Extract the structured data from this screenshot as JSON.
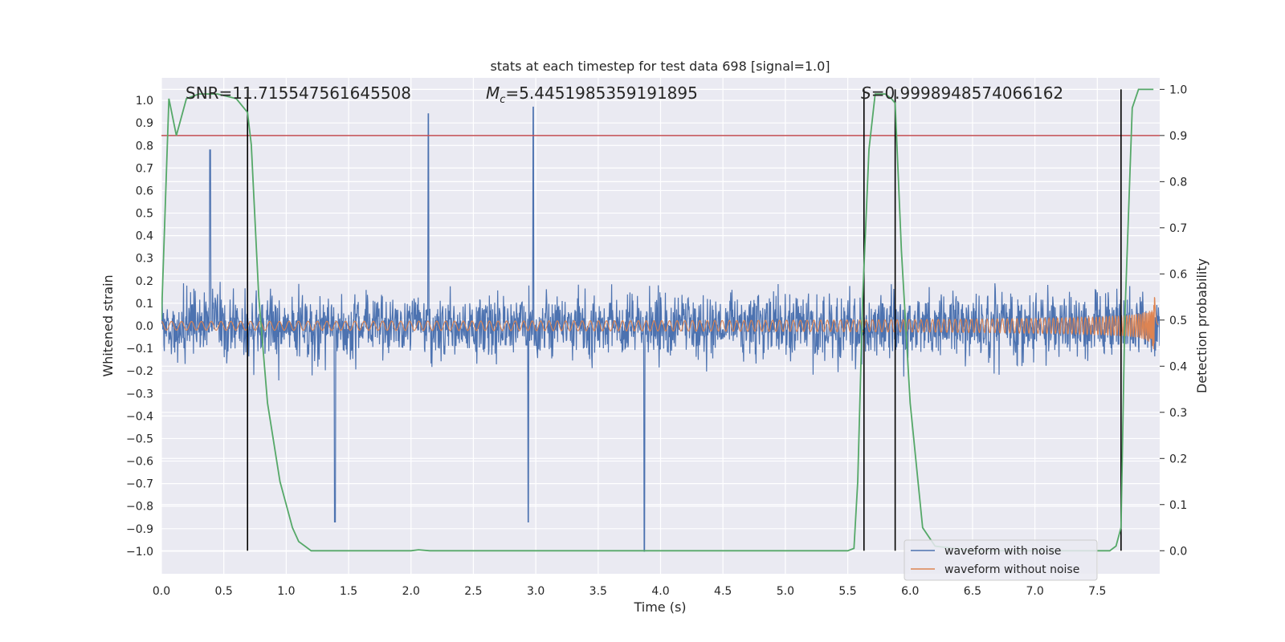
{
  "chart_data": {
    "type": "line",
    "title": "stats at each timestep for test data 698 [signal=1.0]",
    "xlabel": "Time (s)",
    "ylabel": "Whitened strain",
    "ylabel_right": "Detection probability",
    "xlim": [
      0.0,
      8.0
    ],
    "ylim": [
      -1.1,
      1.1
    ],
    "ylim_right": [
      -0.05,
      1.025
    ],
    "x_ticks": [
      "0.0",
      "0.5",
      "1.0",
      "1.5",
      "2.0",
      "2.5",
      "3.0",
      "3.5",
      "4.0",
      "4.5",
      "5.0",
      "5.5",
      "6.0",
      "6.5",
      "7.0",
      "7.5"
    ],
    "y_ticks": [
      "1.0",
      "0.9",
      "0.8",
      "0.7",
      "0.6",
      "0.5",
      "0.4",
      "0.3",
      "0.2",
      "0.1",
      "0.0",
      "−0.1",
      "−0.2",
      "−0.3",
      "−0.4",
      "−0.5",
      "−0.6",
      "−0.7",
      "−0.8",
      "−0.9",
      "−1.0"
    ],
    "y_right_ticks": [
      "1.0",
      "0.9",
      "0.8",
      "0.7",
      "0.6",
      "0.5",
      "0.4",
      "0.3",
      "0.2",
      "0.1",
      "0.0"
    ],
    "annotations": {
      "snr": "SNR=11.715547561645508",
      "mc_symbol": "M",
      "mc_sub": "c",
      "mc_value": "=5.4451985359191895",
      "s_symbol": "S",
      "s_value": "=0.9998948574066162"
    },
    "threshold": {
      "value": 0.9,
      "axis": "right",
      "color": "#c44e52"
    },
    "vertical_markers_x": [
      0.69,
      5.63,
      5.88,
      7.69
    ],
    "series": [
      {
        "name": "waveform with noise",
        "color": "#4c72b0",
        "description": "noisy whitened strain, roughly uniform amplitude ~0.4 with spikes",
        "spikes": [
          [
            0.39,
            0.78
          ],
          [
            2.14,
            0.94
          ],
          [
            2.98,
            0.97
          ],
          [
            3.87,
            -1.0
          ],
          [
            1.39,
            -0.87
          ],
          [
            2.94,
            -0.87
          ]
        ]
      },
      {
        "name": "waveform without noise",
        "color": "#dd8452",
        "description": "inspiral chirp, amplitude ~0.02 growing to ~0.31 near merger at ~7.9 s"
      },
      {
        "name": "detection probability",
        "color": "#55a868",
        "axis": "right",
        "x": [
          0.0,
          0.06,
          0.12,
          0.2,
          0.3,
          0.45,
          0.6,
          0.69,
          0.72,
          0.78,
          0.85,
          0.95,
          1.0,
          1.05,
          1.1,
          1.2,
          1.5,
          2.0,
          2.06,
          2.15,
          3.0,
          4.0,
          5.0,
          5.5,
          5.55,
          5.58,
          5.62,
          5.67,
          5.72,
          5.8,
          5.85,
          5.88,
          5.93,
          6.0,
          6.1,
          6.2,
          6.5,
          7.0,
          7.5,
          7.6,
          7.65,
          7.69,
          7.72,
          7.78,
          7.83,
          7.95
        ],
        "y": [
          0.5,
          0.98,
          0.9,
          0.98,
          0.99,
          0.99,
          0.98,
          0.95,
          0.88,
          0.55,
          0.32,
          0.15,
          0.1,
          0.05,
          0.02,
          0.0,
          0.0,
          0.0,
          0.002,
          0.0,
          0.0,
          0.0,
          0.0,
          0.0,
          0.005,
          0.15,
          0.55,
          0.87,
          0.99,
          0.99,
          0.98,
          0.97,
          0.65,
          0.32,
          0.05,
          0.01,
          0.0,
          0.0,
          0.0,
          0.0,
          0.01,
          0.05,
          0.5,
          0.96,
          1.0,
          1.0
        ]
      }
    ],
    "legend": {
      "position": "bottom-right",
      "entries": [
        "waveform with noise",
        "waveform without noise"
      ]
    },
    "grid": true,
    "colors": {
      "background": "#eaeaf2",
      "grid": "#ffffff",
      "marker": "#000000"
    }
  }
}
